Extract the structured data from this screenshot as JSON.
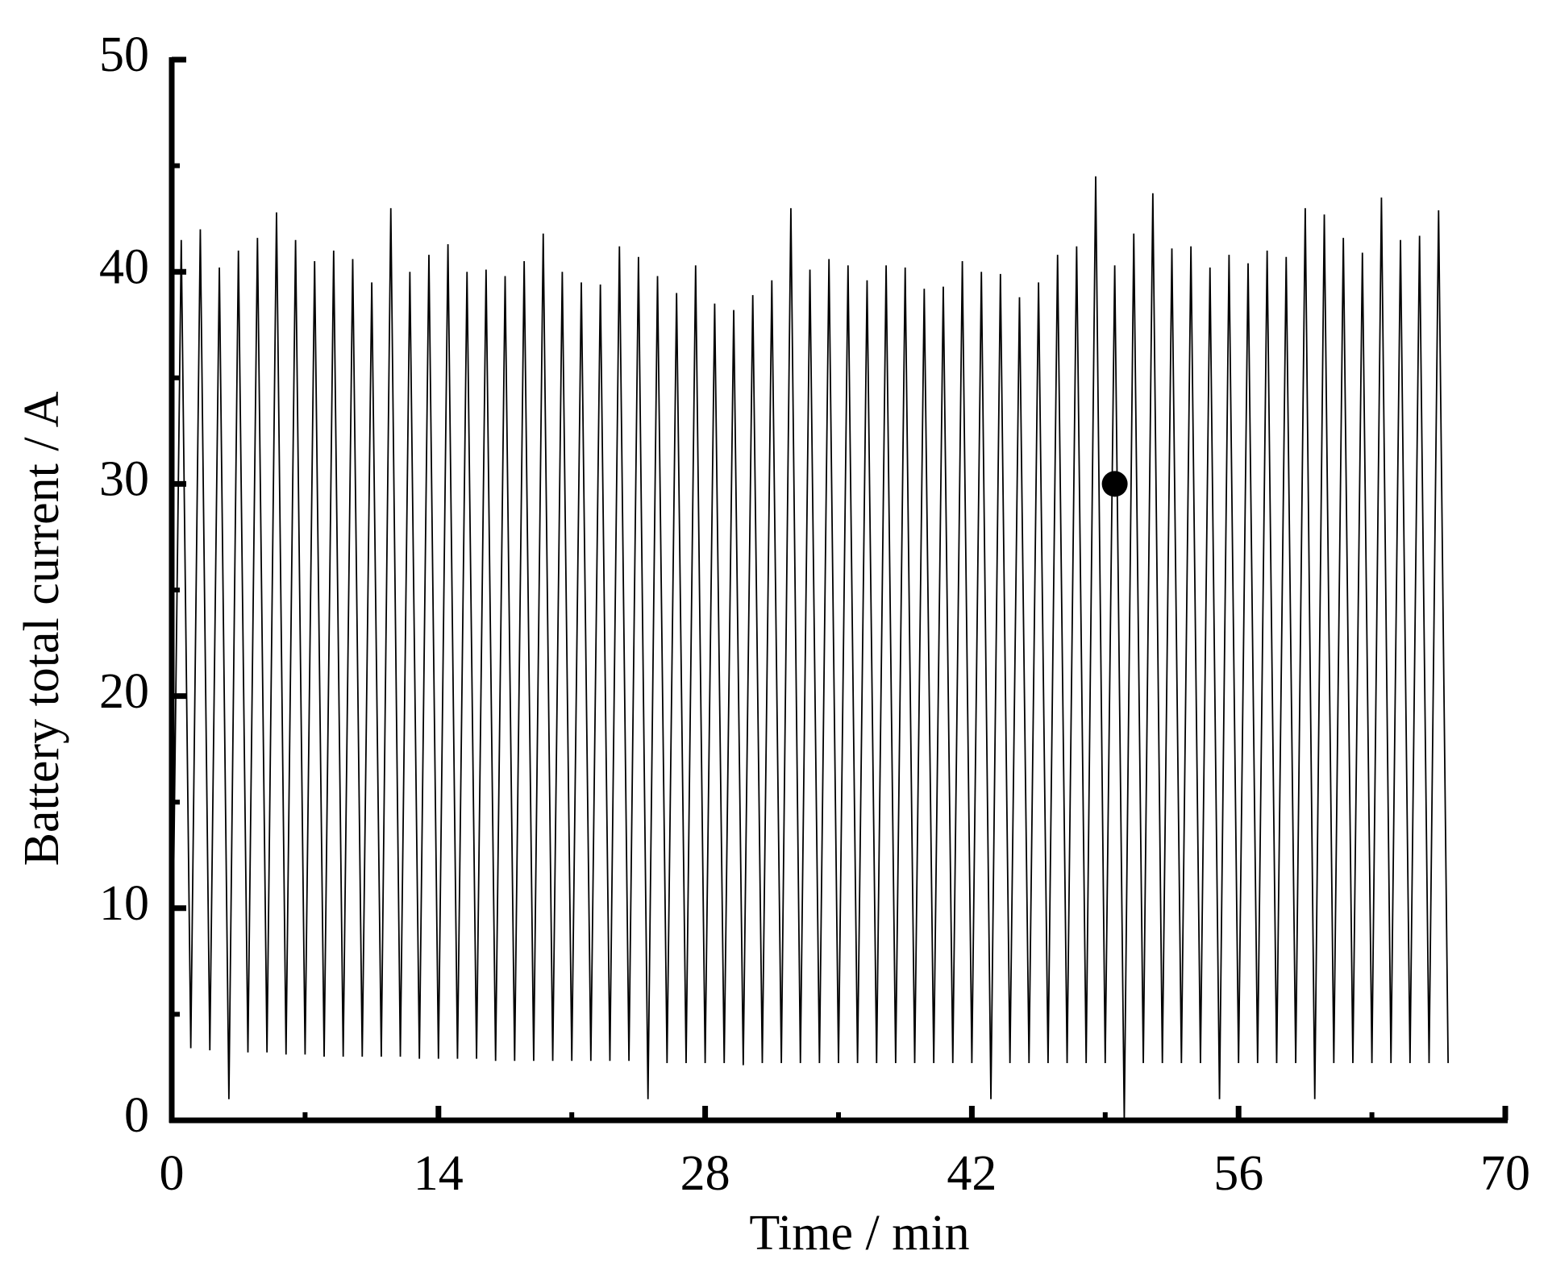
{
  "chart_data": {
    "type": "line",
    "x_label": "Time / min",
    "y_label": "Battery total current / A",
    "xlim": [
      0,
      70
    ],
    "xticks": [
      0,
      14,
      28,
      42,
      56,
      70
    ],
    "x_minor_ticks": [
      7,
      21,
      35,
      49,
      63
    ],
    "ylim": [
      0,
      50
    ],
    "yticks": [
      0,
      10,
      20,
      30,
      40,
      50
    ],
    "y_minor_ticks": [
      5,
      15,
      25,
      35,
      45
    ],
    "grid": false,
    "series": [
      {
        "color": "#000000",
        "x": [
          0,
          0.5,
          1,
          1.5,
          2,
          2.5,
          3,
          3.5,
          4,
          4.5,
          5,
          5.5,
          6,
          6.5,
          7,
          7.5,
          8,
          8.5,
          9,
          9.5,
          10,
          10.5,
          11,
          11.5,
          12,
          12.5,
          13,
          13.5,
          14,
          14.5,
          15,
          15.5,
          16,
          16.5,
          17,
          17.5,
          18,
          18.5,
          19,
          19.5,
          20,
          20.5,
          21,
          21.5,
          22,
          22.5,
          23,
          23.5,
          24,
          24.5,
          25,
          25.5,
          26,
          26.5,
          27,
          27.5,
          28,
          28.5,
          29,
          29.5,
          30,
          30.5,
          31,
          31.5,
          32,
          32.5,
          33,
          33.5,
          34,
          34.5,
          35,
          35.5,
          36,
          36.5,
          37,
          37.5,
          38,
          38.5,
          39,
          39.5,
          40,
          40.5,
          41,
          41.5,
          42,
          42.5,
          43,
          43.5,
          44,
          44.5,
          45,
          45.5,
          46,
          46.5,
          47,
          47.5,
          48,
          48.5,
          49,
          49.5,
          50,
          50.5,
          51,
          51.5,
          52,
          52.5,
          53,
          53.5,
          54,
          54.5,
          55,
          55.5,
          56,
          56.5,
          57,
          57.5,
          58,
          58.5,
          59,
          59.5,
          60,
          60.5,
          61,
          61.5,
          62,
          62.5,
          63,
          63.5,
          64,
          64.5,
          65,
          65.5,
          66,
          66.5,
          67
        ],
        "values": [
          4,
          41.5,
          3.4,
          42,
          3.3,
          40.2,
          1,
          41,
          3.2,
          41.6,
          3.2,
          42.8,
          3.1,
          41.5,
          3.1,
          40.5,
          3,
          41,
          3,
          40.6,
          3,
          39.5,
          3,
          43,
          3,
          40,
          2.9,
          40.8,
          2.9,
          41.3,
          2.9,
          40,
          2.9,
          40.1,
          2.8,
          39.8,
          2.8,
          40.5,
          2.8,
          41.8,
          2.8,
          40,
          2.8,
          39.5,
          2.8,
          39.4,
          2.8,
          41.2,
          2.8,
          40.7,
          1,
          39.8,
          2.7,
          39,
          2.7,
          40.3,
          2.7,
          38.5,
          2.7,
          38.2,
          2.6,
          38.9,
          2.7,
          39.6,
          2.7,
          43,
          2.7,
          40.1,
          2.7,
          40.6,
          2.7,
          40.3,
          2.7,
          39.6,
          2.7,
          40.3,
          2.7,
          40.2,
          2.7,
          39.2,
          2.7,
          39.3,
          2.7,
          40.5,
          2.7,
          40,
          1,
          39.9,
          2.7,
          38.8,
          2.7,
          39.5,
          2.7,
          40.8,
          2.7,
          41.2,
          2.7,
          44.5,
          2.7,
          40.3,
          0,
          41.8,
          2.7,
          43.7,
          2.7,
          41.1,
          2.7,
          41.2,
          2.7,
          40.2,
          1,
          40.8,
          2.7,
          40.4,
          2.7,
          41,
          2.7,
          40.7,
          2.7,
          43,
          1,
          42.7,
          2.7,
          41.6,
          2.7,
          40.9,
          2.7,
          43.5,
          2.7,
          41.5,
          2.7,
          41.7,
          2.7,
          42.9,
          2.7
        ]
      }
    ],
    "markers": {
      "color": "#000000",
      "x": [
        49.5
      ],
      "values": [
        30
      ]
    }
  }
}
